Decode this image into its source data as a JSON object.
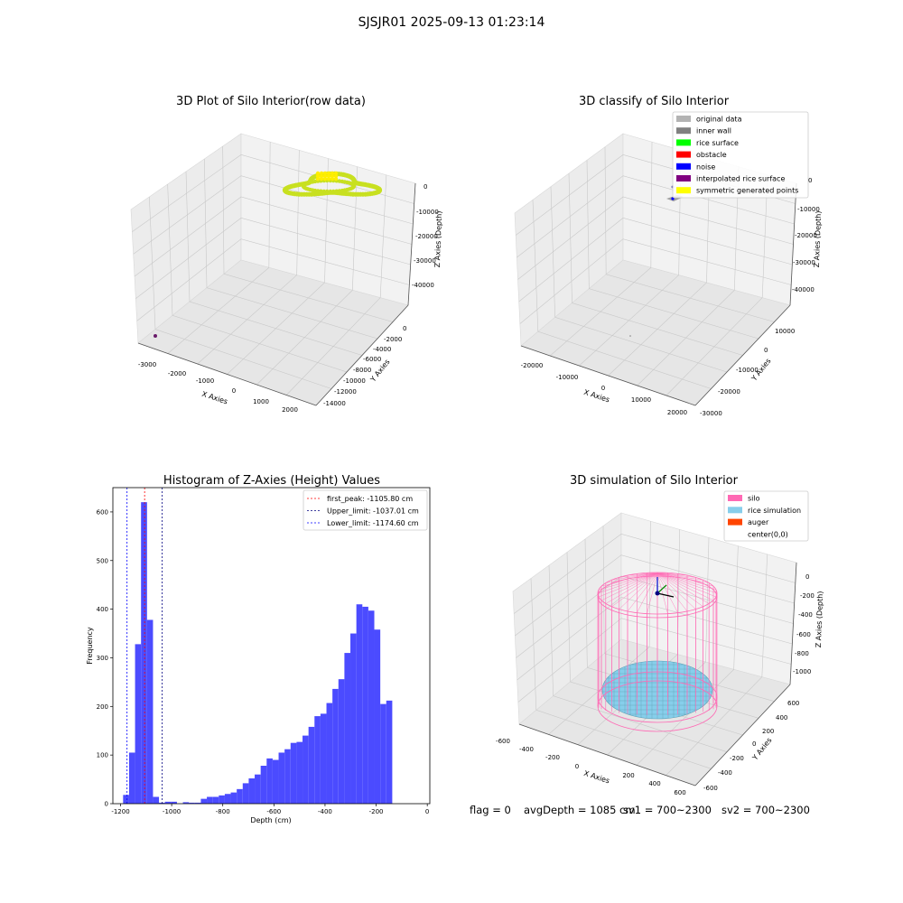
{
  "suptitle": "SJSJR01 2025-09-13 01:23:14",
  "charts": {
    "raw": {
      "title": "3D Plot of Silo Interior(row data)",
      "xlabel": "X Axies",
      "ylabel": "Y Axies",
      "zlabel": "Z Axies (Depth)",
      "xticks": [
        "-3000",
        "-2000",
        "-1000",
        "0",
        "1000",
        "2000"
      ],
      "yticks": [
        "0",
        "-2000",
        "-4000",
        "-6000",
        "-8000",
        "-10000",
        "-12000",
        "-14000"
      ],
      "zticks": [
        "0",
        "-10000",
        "-20000",
        "-30000",
        "-40000"
      ],
      "point_color": "#c8e020",
      "highlight_color": "#ffee00",
      "outlier_color": "#6a1b6a"
    },
    "classify": {
      "title": "3D classify of Silo Interior",
      "xlabel": "X Axies",
      "ylabel": "Y Axies",
      "zlabel": "Z Axies (Depth)",
      "xticks": [
        "-20000",
        "-10000",
        "0",
        "10000",
        "20000"
      ],
      "yticks": [
        "10000",
        "0",
        "-10000",
        "-20000",
        "-30000"
      ],
      "zticks": [
        "0",
        "-10000",
        "-20000",
        "-30000",
        "-40000"
      ],
      "legend": [
        {
          "label": "original data",
          "color": "#b3b3b3"
        },
        {
          "label": "inner wall",
          "color": "#808080"
        },
        {
          "label": "rice surface",
          "color": "#00ff00"
        },
        {
          "label": "obstacle",
          "color": "#ff0000"
        },
        {
          "label": "noise",
          "color": "#0000ff"
        },
        {
          "label": "interpolated rice surface",
          "color": "#800080"
        },
        {
          "label": "symmetric generated points",
          "color": "#ffff00"
        }
      ]
    },
    "simulation": {
      "title": "3D simulation of Silo Interior",
      "xlabel": "X Axies",
      "ylabel": "Y Axies",
      "zlabel": "Z Axies (Depth)",
      "xticks": [
        "-600",
        "-400",
        "-200",
        "0",
        "200",
        "400",
        "600"
      ],
      "yticks": [
        "600",
        "400",
        "200",
        "0",
        "-200",
        "-400",
        "-600"
      ],
      "zticks": [
        "0",
        "-200",
        "-400",
        "-600",
        "-800",
        "-1000"
      ],
      "legend": [
        {
          "label": "silo",
          "color": "#ff69b4"
        },
        {
          "label": "rice simulation",
          "color": "#87ceeb"
        },
        {
          "label": "auger",
          "color": "#ff4500"
        },
        {
          "label": "center(0,0)",
          "color": "#ffffff"
        }
      ]
    }
  },
  "status": {
    "flag": "flag = 0",
    "avg_depth": "avgDepth = 1085 cm",
    "sv1": "sv1 = 700~2300",
    "sv2": "sv2 = 700~2300"
  },
  "chart_data": [
    {
      "type": "bar",
      "title": "Histogram of Z-Axies (Height) Values",
      "xlabel": "Depth (cm)",
      "ylabel": "Frequency",
      "xlim": [
        -1230,
        10
      ],
      "ylim": [
        0,
        650
      ],
      "xticks": [
        -1200,
        -1000,
        -800,
        -600,
        -400,
        -200,
        0
      ],
      "yticks": [
        0,
        100,
        200,
        300,
        400,
        500,
        600
      ],
      "bar_color": "#4b4bff",
      "bins": {
        "start": -1190,
        "width": 23.4,
        "counts": [
          18,
          105,
          328,
          620,
          378,
          14,
          2,
          4,
          4,
          0,
          3,
          2,
          2,
          10,
          14,
          14,
          17,
          20,
          23,
          30,
          42,
          52,
          60,
          78,
          93,
          90,
          105,
          112,
          125,
          127,
          140,
          158,
          180,
          185,
          207,
          236,
          256,
          310,
          350,
          410,
          405,
          397,
          358,
          205,
          212
        ]
      },
      "vlines": [
        {
          "label": "first_peak: -1105.80 cm",
          "x": -1105.8,
          "color": "#ff0000"
        },
        {
          "label": "Upper_limit: -1037.01 cm",
          "x": -1037.01,
          "color": "#000080"
        },
        {
          "label": "Lower_limit: -1174.60 cm",
          "x": -1174.6,
          "color": "#0000ff"
        }
      ],
      "legend_position": "upper right"
    }
  ]
}
